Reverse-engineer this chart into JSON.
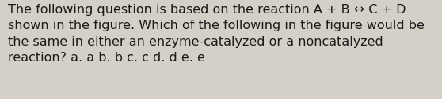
{
  "line1": "The following question is based on the reaction A + B ↔ C + D",
  "line2": "shown in the figure. Which of the following in the figure would be",
  "line3": "the same in either an enzyme-catalyzed or a noncatalyzed",
  "line4": "reaction? a. a b. b c. c d. d e. e",
  "background_color": "#d4cfc7",
  "text_color": "#1a1a1a",
  "font_size": 11.5,
  "fig_width": 5.58,
  "fig_height": 1.26
}
